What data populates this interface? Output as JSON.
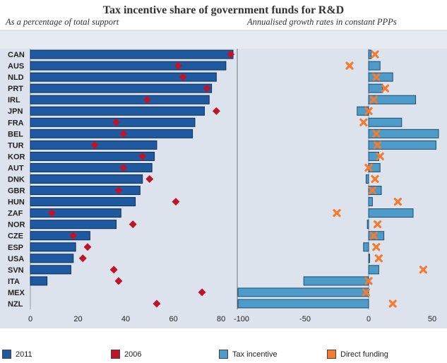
{
  "header": {
    "title": "Tax incentive share of government funds for R&D",
    "subtitle_left": "As a percentage of total support",
    "subtitle_right": "Annualised growth rates in constant PPPs"
  },
  "colors": {
    "bar_2011": "#1f5aa0",
    "marker_2006": "#c0142a",
    "bar_tax": "#4d9bc9",
    "marker_direct": "#f47c30",
    "panel_bg": "#dde3ec"
  },
  "legend": [
    {
      "label": "2011",
      "color": "#1f5aa0"
    },
    {
      "label": "2006",
      "color": "#c0142a"
    },
    {
      "label": "Tax incentive",
      "color": "#4d9bc9"
    },
    {
      "label": "Direct funding",
      "color": "#f47c30"
    }
  ],
  "chart_data": [
    {
      "type": "bar",
      "orientation": "horizontal",
      "title": "As a percentage of total support",
      "categories": [
        "CAN",
        "AUS",
        "NLD",
        "PRT",
        "IRL",
        "JPN",
        "FRA",
        "BEL",
        "TUR",
        "KOR",
        "AUT",
        "DNK",
        "GBR",
        "HUN",
        "ZAF",
        "NOR",
        "CZE",
        "ESP",
        "USA",
        "SVN",
        "ITA",
        "MEX",
        "NZL"
      ],
      "series": [
        {
          "name": "2011",
          "type": "bar",
          "values": [
            85,
            82,
            78,
            76,
            75,
            73,
            69,
            68,
            53,
            52,
            51,
            47,
            46,
            44,
            38,
            36,
            25,
            19,
            18,
            17,
            7,
            null,
            null
          ]
        },
        {
          "name": "2006",
          "type": "marker",
          "values": [
            84,
            62,
            64,
            74,
            49,
            78,
            36,
            39,
            27,
            47,
            39,
            50,
            37,
            61,
            9,
            43,
            18,
            24,
            22,
            35,
            37,
            72,
            53
          ]
        }
      ],
      "xlim": [
        -5,
        90
      ],
      "xticks": [
        0,
        20,
        40,
        60,
        80
      ],
      "grid": false
    },
    {
      "type": "bar",
      "orientation": "horizontal",
      "title": "Annualised growth rates in constant PPPs",
      "categories": [
        "CAN",
        "AUS",
        "NLD",
        "PRT",
        "IRL",
        "JPN",
        "FRA",
        "BEL",
        "TUR",
        "KOR",
        "AUT",
        "DNK",
        "GBR",
        "HUN",
        "ZAF",
        "NOR",
        "CZE",
        "ESP",
        "USA",
        "SVN",
        "ITA",
        "MEX",
        "NZL"
      ],
      "series": [
        {
          "name": "Tax incentive",
          "type": "bar",
          "values": [
            2,
            9,
            19,
            11,
            37,
            -9,
            26,
            55,
            53,
            8,
            9,
            -2,
            10,
            3,
            35,
            -1,
            12,
            -4,
            0.5,
            8,
            -51,
            -107,
            -107
          ]
        },
        {
          "name": "Direct funding",
          "type": "marker",
          "values": [
            5,
            -15,
            6,
            13,
            4,
            0,
            -4,
            6,
            7,
            9,
            0,
            5,
            3,
            23,
            -25,
            7,
            4,
            6,
            8,
            43,
            0,
            -2,
            19
          ]
        }
      ],
      "xlim": [
        -107,
        62
      ],
      "xticks": [
        -100,
        -50,
        0,
        50
      ],
      "grid": false
    }
  ]
}
